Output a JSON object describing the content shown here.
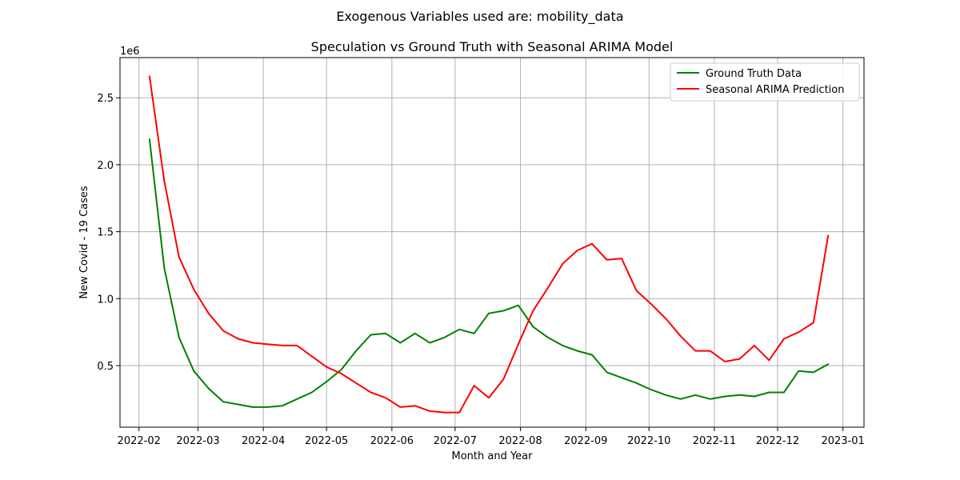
{
  "suptitle": "Exogenous Variables used are: mobility_data",
  "chart_data": {
    "type": "line",
    "title": "Speculation vs Ground Truth with Seasonal ARIMA Model",
    "xlabel": "Month and Year",
    "ylabel": "New Covid - 19 Cases",
    "y_offset_label": "1e6",
    "y_multiplier": 1000000,
    "grid": true,
    "legend_position": "upper right",
    "xlim": [
      "2022-01-23",
      "2023-01-11"
    ],
    "ylim": [
      0.04,
      2.8
    ],
    "x_ticks": [
      {
        "date": "2022-02-01",
        "label": "2022-02"
      },
      {
        "date": "2022-03-01",
        "label": "2022-03"
      },
      {
        "date": "2022-04-01",
        "label": "2022-04"
      },
      {
        "date": "2022-05-01",
        "label": "2022-05"
      },
      {
        "date": "2022-06-01",
        "label": "2022-06"
      },
      {
        "date": "2022-07-01",
        "label": "2022-07"
      },
      {
        "date": "2022-08-01",
        "label": "2022-08"
      },
      {
        "date": "2022-09-01",
        "label": "2022-09"
      },
      {
        "date": "2022-10-01",
        "label": "2022-10"
      },
      {
        "date": "2022-11-01",
        "label": "2022-11"
      },
      {
        "date": "2022-12-01",
        "label": "2022-12"
      },
      {
        "date": "2023-01-01",
        "label": "2023-01"
      }
    ],
    "y_ticks": [
      {
        "value": 0.5,
        "label": "0.5"
      },
      {
        "value": 1.0,
        "label": "1.0"
      },
      {
        "value": 1.5,
        "label": "1.5"
      },
      {
        "value": 2.0,
        "label": "2.0"
      },
      {
        "value": 2.5,
        "label": "2.5"
      }
    ],
    "x": [
      "2022-02-06",
      "2022-02-13",
      "2022-02-20",
      "2022-02-27",
      "2022-03-06",
      "2022-03-13",
      "2022-03-20",
      "2022-03-27",
      "2022-04-03",
      "2022-04-10",
      "2022-04-17",
      "2022-04-24",
      "2022-05-01",
      "2022-05-08",
      "2022-05-15",
      "2022-05-22",
      "2022-05-29",
      "2022-06-05",
      "2022-06-12",
      "2022-06-19",
      "2022-06-26",
      "2022-07-03",
      "2022-07-10",
      "2022-07-17",
      "2022-07-24",
      "2022-07-31",
      "2022-08-07",
      "2022-08-14",
      "2022-08-21",
      "2022-08-28",
      "2022-09-04",
      "2022-09-11",
      "2022-09-18",
      "2022-09-25",
      "2022-10-02",
      "2022-10-09",
      "2022-10-16",
      "2022-10-23",
      "2022-10-30",
      "2022-11-06",
      "2022-11-13",
      "2022-11-20",
      "2022-11-27",
      "2022-12-04",
      "2022-12-11",
      "2022-12-18",
      "2022-12-25"
    ],
    "series": [
      {
        "name": "Ground Truth Data",
        "color": "#008000",
        "values": [
          2.19,
          1.23,
          0.71,
          0.46,
          0.33,
          0.23,
          0.21,
          0.19,
          0.19,
          0.2,
          0.25,
          0.3,
          0.38,
          0.47,
          0.61,
          0.73,
          0.74,
          0.67,
          0.74,
          0.67,
          0.71,
          0.77,
          0.74,
          0.89,
          0.91,
          0.95,
          0.79,
          0.71,
          0.65,
          0.61,
          0.58,
          0.45,
          0.41,
          0.37,
          0.32,
          0.28,
          0.25,
          0.28,
          0.25,
          0.27,
          0.28,
          0.27,
          0.3,
          0.3,
          0.46,
          0.45,
          0.51
        ]
      },
      {
        "name": "Seasonal ARIMA Prediction",
        "color": "#ff0000",
        "values": [
          2.66,
          1.88,
          1.31,
          1.07,
          0.89,
          0.76,
          0.7,
          0.67,
          0.66,
          0.65,
          0.65,
          0.57,
          0.49,
          0.44,
          0.37,
          0.3,
          0.26,
          0.19,
          0.2,
          0.16,
          0.15,
          0.15,
          0.35,
          0.26,
          0.4,
          0.66,
          0.91,
          1.08,
          1.26,
          1.36,
          1.41,
          1.29,
          1.3,
          1.06,
          0.96,
          0.85,
          0.72,
          0.61,
          0.61,
          0.53,
          0.55,
          0.65,
          0.54,
          0.7,
          0.75,
          0.82,
          1.47
        ]
      }
    ]
  }
}
